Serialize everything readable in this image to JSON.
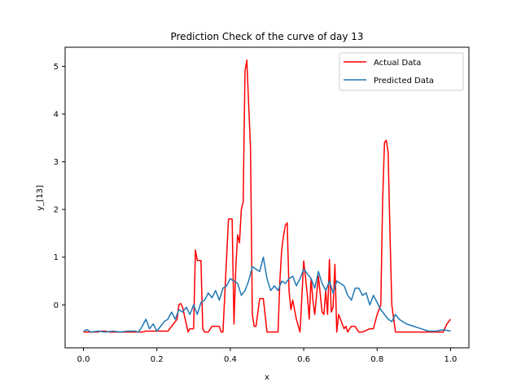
{
  "chart_data": {
    "type": "line",
    "title": "Prediction Check of the curve of day 13",
    "xlabel": "x",
    "ylabel": "y_[13]",
    "xlim": [
      -0.05,
      1.05
    ],
    "ylim": [
      -0.9,
      5.4
    ],
    "xticks": [
      0.0,
      0.2,
      0.4,
      0.6,
      0.8,
      1.0
    ],
    "xtick_labels": [
      "0.0",
      "0.2",
      "0.4",
      "0.6",
      "0.8",
      "1.0"
    ],
    "yticks": [
      0,
      1,
      2,
      3,
      4,
      5
    ],
    "ytick_labels": [
      "0",
      "1",
      "2",
      "3",
      "4",
      "5"
    ],
    "grid": false,
    "legend_position": "upper right",
    "series": [
      {
        "name": "Actual Data",
        "color": "#ff0000",
        "x": [
          0.0,
          0.04,
          0.045,
          0.06,
          0.07,
          0.12,
          0.16,
          0.17,
          0.23,
          0.24,
          0.255,
          0.26,
          0.265,
          0.27,
          0.28,
          0.285,
          0.29,
          0.3,
          0.305,
          0.31,
          0.32,
          0.325,
          0.33,
          0.34,
          0.35,
          0.36,
          0.37,
          0.375,
          0.38,
          0.395,
          0.4,
          0.405,
          0.41,
          0.415,
          0.42,
          0.425,
          0.43,
          0.435,
          0.44,
          0.445,
          0.45,
          0.455,
          0.46,
          0.465,
          0.47,
          0.48,
          0.485,
          0.49,
          0.5,
          0.505,
          0.51,
          0.515,
          0.53,
          0.535,
          0.54,
          0.545,
          0.55,
          0.555,
          0.56,
          0.565,
          0.57,
          0.58,
          0.59,
          0.6,
          0.61,
          0.615,
          0.62,
          0.625,
          0.63,
          0.64,
          0.65,
          0.655,
          0.66,
          0.665,
          0.67,
          0.675,
          0.68,
          0.685,
          0.69,
          0.695,
          0.7,
          0.705,
          0.71,
          0.715,
          0.72,
          0.725,
          0.73,
          0.74,
          0.75,
          0.755,
          0.76,
          0.78,
          0.79,
          0.8,
          0.81,
          0.815,
          0.82,
          0.825,
          0.83,
          0.835,
          0.84,
          0.85,
          0.86,
          0.9,
          0.94,
          0.98,
          0.99,
          1.0
        ],
        "y": [
          -0.57,
          -0.57,
          -0.55,
          -0.55,
          -0.57,
          -0.57,
          -0.57,
          -0.55,
          -0.55,
          -0.45,
          -0.3,
          0.0,
          0.03,
          -0.05,
          -0.4,
          -0.57,
          -0.5,
          -0.5,
          1.15,
          0.93,
          0.93,
          -0.5,
          -0.57,
          -0.57,
          -0.45,
          -0.45,
          -0.45,
          -0.57,
          -0.57,
          1.8,
          1.8,
          1.8,
          -0.4,
          0.8,
          1.47,
          1.3,
          2.0,
          2.15,
          4.9,
          5.13,
          4.2,
          3.3,
          -0.2,
          -0.45,
          -0.45,
          0.13,
          0.13,
          0.13,
          -0.57,
          -0.57,
          -0.57,
          -0.57,
          -0.57,
          0.5,
          1.15,
          1.45,
          1.67,
          1.72,
          0.3,
          -0.1,
          0.1,
          -0.3,
          -0.57,
          0.92,
          0.2,
          -0.3,
          0.55,
          0.1,
          -0.2,
          0.6,
          -0.15,
          -0.2,
          0.3,
          -0.2,
          0.95,
          -0.15,
          -0.05,
          0.85,
          -0.57,
          -0.2,
          -0.3,
          -0.4,
          -0.5,
          -0.45,
          -0.57,
          -0.5,
          -0.45,
          -0.45,
          -0.57,
          -0.57,
          -0.57,
          -0.5,
          -0.5,
          -0.2,
          0.0,
          2.2,
          3.4,
          3.45,
          3.2,
          1.5,
          0.0,
          -0.57,
          -0.57,
          -0.57,
          -0.57,
          -0.57,
          -0.4,
          -0.3
        ]
      },
      {
        "name": "Predicted Data",
        "color": "#1f77b4",
        "x": [
          0.0,
          0.01,
          0.02,
          0.04,
          0.06,
          0.08,
          0.1,
          0.12,
          0.14,
          0.15,
          0.16,
          0.17,
          0.18,
          0.19,
          0.2,
          0.21,
          0.22,
          0.23,
          0.24,
          0.25,
          0.26,
          0.27,
          0.28,
          0.29,
          0.3,
          0.31,
          0.32,
          0.33,
          0.34,
          0.35,
          0.36,
          0.37,
          0.38,
          0.39,
          0.4,
          0.41,
          0.42,
          0.43,
          0.44,
          0.45,
          0.46,
          0.47,
          0.48,
          0.49,
          0.5,
          0.51,
          0.52,
          0.53,
          0.54,
          0.55,
          0.56,
          0.57,
          0.58,
          0.59,
          0.6,
          0.61,
          0.62,
          0.63,
          0.64,
          0.65,
          0.66,
          0.67,
          0.68,
          0.69,
          0.7,
          0.71,
          0.72,
          0.73,
          0.74,
          0.75,
          0.76,
          0.77,
          0.78,
          0.79,
          0.8,
          0.81,
          0.82,
          0.83,
          0.84,
          0.85,
          0.86,
          0.88,
          0.9,
          0.92,
          0.94,
          0.96,
          0.98,
          1.0
        ],
        "y": [
          -0.55,
          -0.52,
          -0.57,
          -0.55,
          -0.57,
          -0.55,
          -0.57,
          -0.55,
          -0.55,
          -0.57,
          -0.45,
          -0.3,
          -0.5,
          -0.4,
          -0.55,
          -0.45,
          -0.35,
          -0.3,
          -0.15,
          -0.3,
          -0.1,
          -0.15,
          -0.05,
          -0.2,
          0.0,
          -0.2,
          0.05,
          0.1,
          0.25,
          0.15,
          0.3,
          0.1,
          0.35,
          0.4,
          0.55,
          0.5,
          0.45,
          0.2,
          0.3,
          0.5,
          0.8,
          0.75,
          0.7,
          1.0,
          0.55,
          0.3,
          0.4,
          0.3,
          0.5,
          0.45,
          0.55,
          0.6,
          0.4,
          0.55,
          0.75,
          0.65,
          0.55,
          0.35,
          0.7,
          0.45,
          0.3,
          0.5,
          0.25,
          0.5,
          0.45,
          0.4,
          0.2,
          0.1,
          0.35,
          0.35,
          0.2,
          0.25,
          0.0,
          0.2,
          0.05,
          -0.1,
          -0.2,
          -0.3,
          -0.35,
          -0.2,
          -0.3,
          -0.4,
          -0.45,
          -0.5,
          -0.55,
          -0.55,
          -0.52,
          -0.55
        ]
      }
    ]
  }
}
